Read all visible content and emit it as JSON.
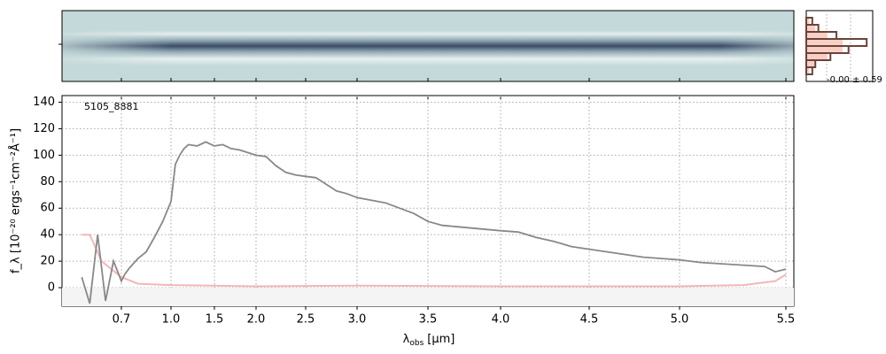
{
  "chart_data": [
    {
      "type": "line",
      "annotation": "5105_8881",
      "xlabel": {
        "symbol": "λ",
        "subscript": "obs",
        "unit": "[μm]"
      },
      "ylabel": "f_λ [10⁻²⁰ ergs⁻¹cm⁻²Å⁻¹]",
      "xlim": [
        0.55,
        5.52
      ],
      "xticks": [
        0.7,
        {
          "value": 1,
          "label": "1.0"
        },
        1.5,
        {
          "value": 2,
          "label": "2.0"
        },
        2.5,
        {
          "value": 3,
          "label": "3.0"
        },
        3.5,
        {
          "value": 4,
          "label": "4.0"
        },
        4.5,
        {
          "value": 5,
          "label": "5.0"
        },
        5.5
      ],
      "ylim": [
        -14,
        145
      ],
      "yticks": [
        0,
        20,
        40,
        60,
        80,
        100,
        120,
        140
      ],
      "grid": true,
      "series": [
        {
          "color": "#888888",
          "x": [
            0.6,
            0.62,
            0.64,
            0.66,
            0.68,
            0.7,
            0.72,
            0.75,
            0.8,
            0.85,
            0.9,
            0.95,
            1.0,
            1.05,
            1.1,
            1.15,
            1.2,
            1.3,
            1.4,
            1.5,
            1.6,
            1.7,
            1.8,
            1.9,
            2.0,
            2.1,
            2.2,
            2.3,
            2.4,
            2.5,
            2.6,
            2.7,
            2.8,
            2.9,
            3.0,
            3.1,
            3.2,
            3.3,
            3.4,
            3.5,
            3.6,
            3.7,
            3.8,
            3.9,
            4.0,
            4.1,
            4.2,
            4.3,
            4.4,
            4.5,
            4.6,
            4.7,
            4.8,
            4.9,
            5.0,
            5.1,
            5.2,
            5.3,
            5.4,
            5.45,
            5.5
          ],
          "values": [
            8,
            -12,
            40,
            -10,
            20,
            5,
            10,
            15,
            22,
            27,
            38,
            50,
            65,
            93,
            100,
            105,
            108,
            107,
            110,
            107,
            108,
            105,
            104,
            102,
            100,
            99,
            92,
            87,
            85,
            84,
            83,
            78,
            73,
            71,
            68,
            66,
            64,
            60,
            56,
            50,
            47,
            46,
            45,
            44,
            43,
            42,
            38,
            35,
            31,
            29,
            27,
            25,
            23,
            22,
            21,
            19,
            18,
            17,
            16,
            12,
            14
          ]
        },
        {
          "color": "#f4b6b6",
          "x": [
            0.6,
            0.62,
            0.65,
            0.7,
            0.8,
            1.0,
            2.0,
            3.0,
            4.0,
            5.0,
            5.3,
            5.45,
            5.5
          ],
          "values": [
            40,
            40,
            20,
            8,
            3,
            2,
            1,
            1.5,
            1,
            1,
            2,
            5,
            10
          ]
        }
      ]
    },
    {
      "type": "histogram",
      "annotation": "-0.00 ± 0.59",
      "orientation": "horizontal",
      "bins": [
        -1.6,
        -1.2,
        -0.8,
        -0.4,
        0,
        0.4,
        0.8,
        1.2,
        1.6
      ],
      "xlim": [
        0,
        22
      ],
      "ylim": [
        -2,
        2
      ],
      "series": [
        {
          "color": "#f8cfc4",
          "values": [
            1,
            3,
            7,
            12,
            12,
            7,
            3,
            1
          ]
        },
        {
          "color": "#6b4438",
          "values": [
            2,
            3,
            8,
            14,
            20,
            10,
            4,
            2
          ]
        }
      ]
    }
  ]
}
